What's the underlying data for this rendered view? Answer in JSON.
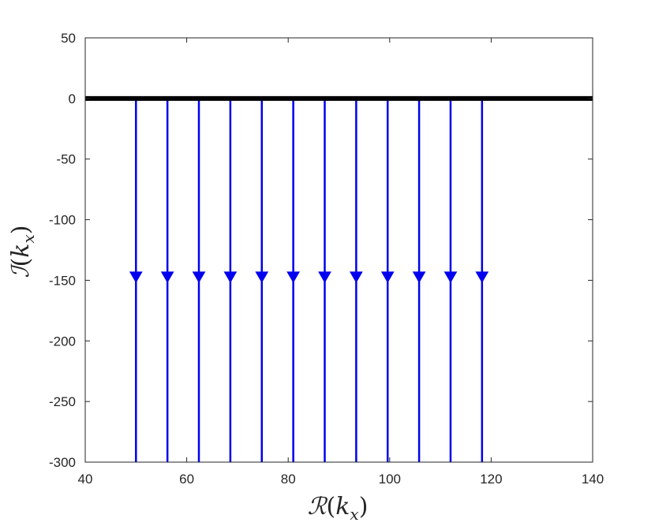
{
  "chart_data": {
    "type": "line",
    "title": "",
    "xlabel": "R(k_x)",
    "ylabel": "I(k_x)",
    "xlabel_display": {
      "symbol": "ℛ",
      "open": "(",
      "var": "k",
      "sub": "x",
      "close": ")"
    },
    "ylabel_display": {
      "symbol": "ℐ",
      "open": "(",
      "var": "k",
      "sub": "x",
      "close": ")"
    },
    "xlim": [
      40,
      140
    ],
    "ylim": [
      -300,
      50
    ],
    "xticks": [
      40,
      60,
      80,
      100,
      120,
      140
    ],
    "yticks": [
      -300,
      -250,
      -200,
      -150,
      -100,
      -50,
      0,
      50
    ],
    "grid": false,
    "legend": "none",
    "baseline": {
      "y": 0,
      "x_range": [
        40,
        140
      ],
      "color": "#000000"
    },
    "series": [
      {
        "x": 50.0,
        "y_start": 0,
        "y_end": -300,
        "arrow_at": -147
      },
      {
        "x": 56.2,
        "y_start": 0,
        "y_end": -300,
        "arrow_at": -147
      },
      {
        "x": 62.4,
        "y_start": 0,
        "y_end": -300,
        "arrow_at": -147
      },
      {
        "x": 68.6,
        "y_start": 0,
        "y_end": -300,
        "arrow_at": -147
      },
      {
        "x": 74.8,
        "y_start": 0,
        "y_end": -300,
        "arrow_at": -147
      },
      {
        "x": 81.0,
        "y_start": 0,
        "y_end": -300,
        "arrow_at": -147
      },
      {
        "x": 87.2,
        "y_start": 0,
        "y_end": -300,
        "arrow_at": -147
      },
      {
        "x": 93.4,
        "y_start": 0,
        "y_end": -300,
        "arrow_at": -147
      },
      {
        "x": 99.6,
        "y_start": 0,
        "y_end": -300,
        "arrow_at": -147
      },
      {
        "x": 105.8,
        "y_start": 0,
        "y_end": -300,
        "arrow_at": -147
      },
      {
        "x": 112.0,
        "y_start": 0,
        "y_end": -300,
        "arrow_at": -147
      },
      {
        "x": 118.2,
        "y_start": 0,
        "y_end": -300,
        "arrow_at": -147
      }
    ],
    "series_color": "#0000ee"
  }
}
